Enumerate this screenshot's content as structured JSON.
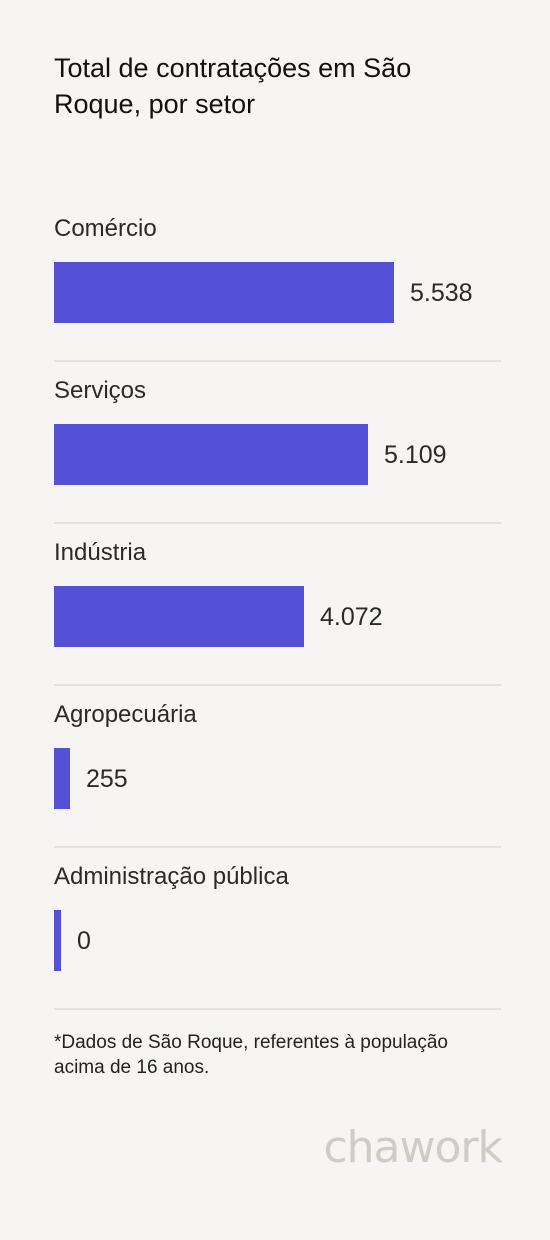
{
  "chart_data": {
    "type": "bar",
    "orientation": "horizontal",
    "title": "Total de contratações em São Roque, por setor",
    "categories": [
      "Comércio",
      "Serviços",
      "Indústria",
      "Agropecuária",
      "Administração pública"
    ],
    "values": [
      5538,
      5109,
      4072,
      255,
      0
    ],
    "value_labels": [
      "5.538",
      "5.109",
      "4.072",
      "255",
      "0"
    ],
    "bar_color": "#5551d6"
  },
  "footnote": "*Dados de São Roque, referentes à população acima de 16 anos.",
  "logo_text": "chawork"
}
